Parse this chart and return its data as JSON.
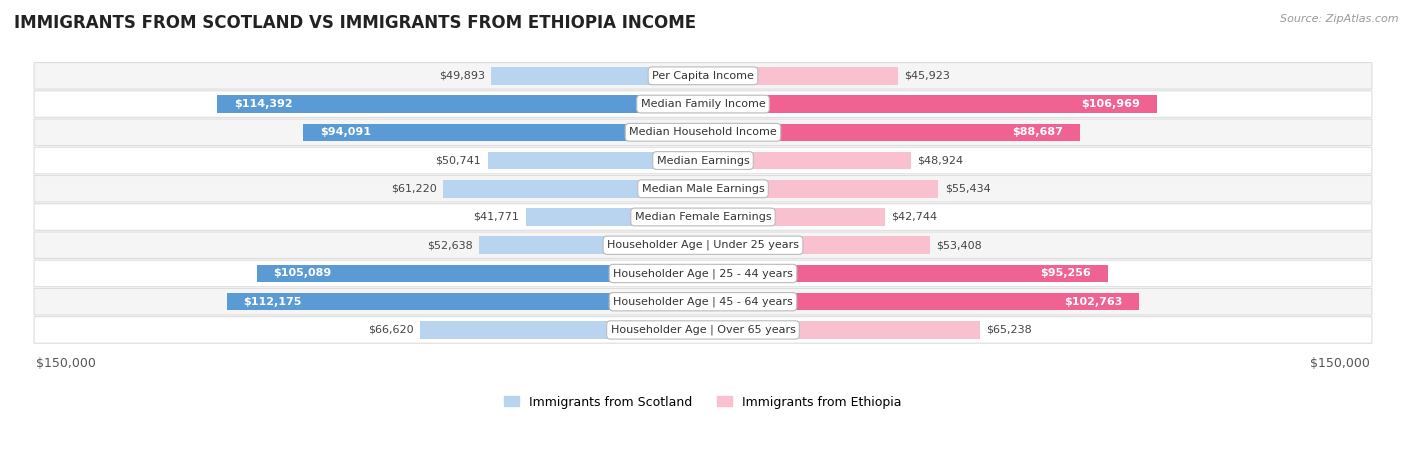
{
  "title": "IMMIGRANTS FROM SCOTLAND VS IMMIGRANTS FROM ETHIOPIA INCOME",
  "source": "Source: ZipAtlas.com",
  "categories": [
    "Per Capita Income",
    "Median Family Income",
    "Median Household Income",
    "Median Earnings",
    "Median Male Earnings",
    "Median Female Earnings",
    "Householder Age | Under 25 years",
    "Householder Age | 25 - 44 years",
    "Householder Age | 45 - 64 years",
    "Householder Age | Over 65 years"
  ],
  "scotland_values": [
    49893,
    114392,
    94091,
    50741,
    61220,
    41771,
    52638,
    105089,
    112175,
    66620
  ],
  "ethiopia_values": [
    45923,
    106969,
    88687,
    48924,
    55434,
    42744,
    53408,
    95256,
    102763,
    65238
  ],
  "scotland_labels": [
    "$49,893",
    "$114,392",
    "$94,091",
    "$50,741",
    "$61,220",
    "$41,771",
    "$52,638",
    "$105,089",
    "$112,175",
    "$66,620"
  ],
  "ethiopia_labels": [
    "$45,923",
    "$106,969",
    "$88,687",
    "$48,924",
    "$55,434",
    "$42,744",
    "$53,408",
    "$95,256",
    "$102,763",
    "$65,238"
  ],
  "scotland_color_light": "#b8d4ee",
  "scotland_color_dark": "#5b9bd5",
  "ethiopia_color_light": "#f9c0cf",
  "ethiopia_color_dark": "#f06292",
  "max_value": 150000,
  "background_color": "#ffffff",
  "row_bg_even": "#f5f5f5",
  "row_bg_odd": "#ffffff",
  "row_border": "#dddddd",
  "xlabel_left": "$150,000",
  "xlabel_right": "$150,000",
  "legend_scotland": "Immigrants from Scotland",
  "legend_ethiopia": "Immigrants from Ethiopia",
  "title_fontsize": 12,
  "label_fontsize": 8,
  "category_fontsize": 8,
  "axis_fontsize": 9,
  "inside_label_threshold": 80000
}
